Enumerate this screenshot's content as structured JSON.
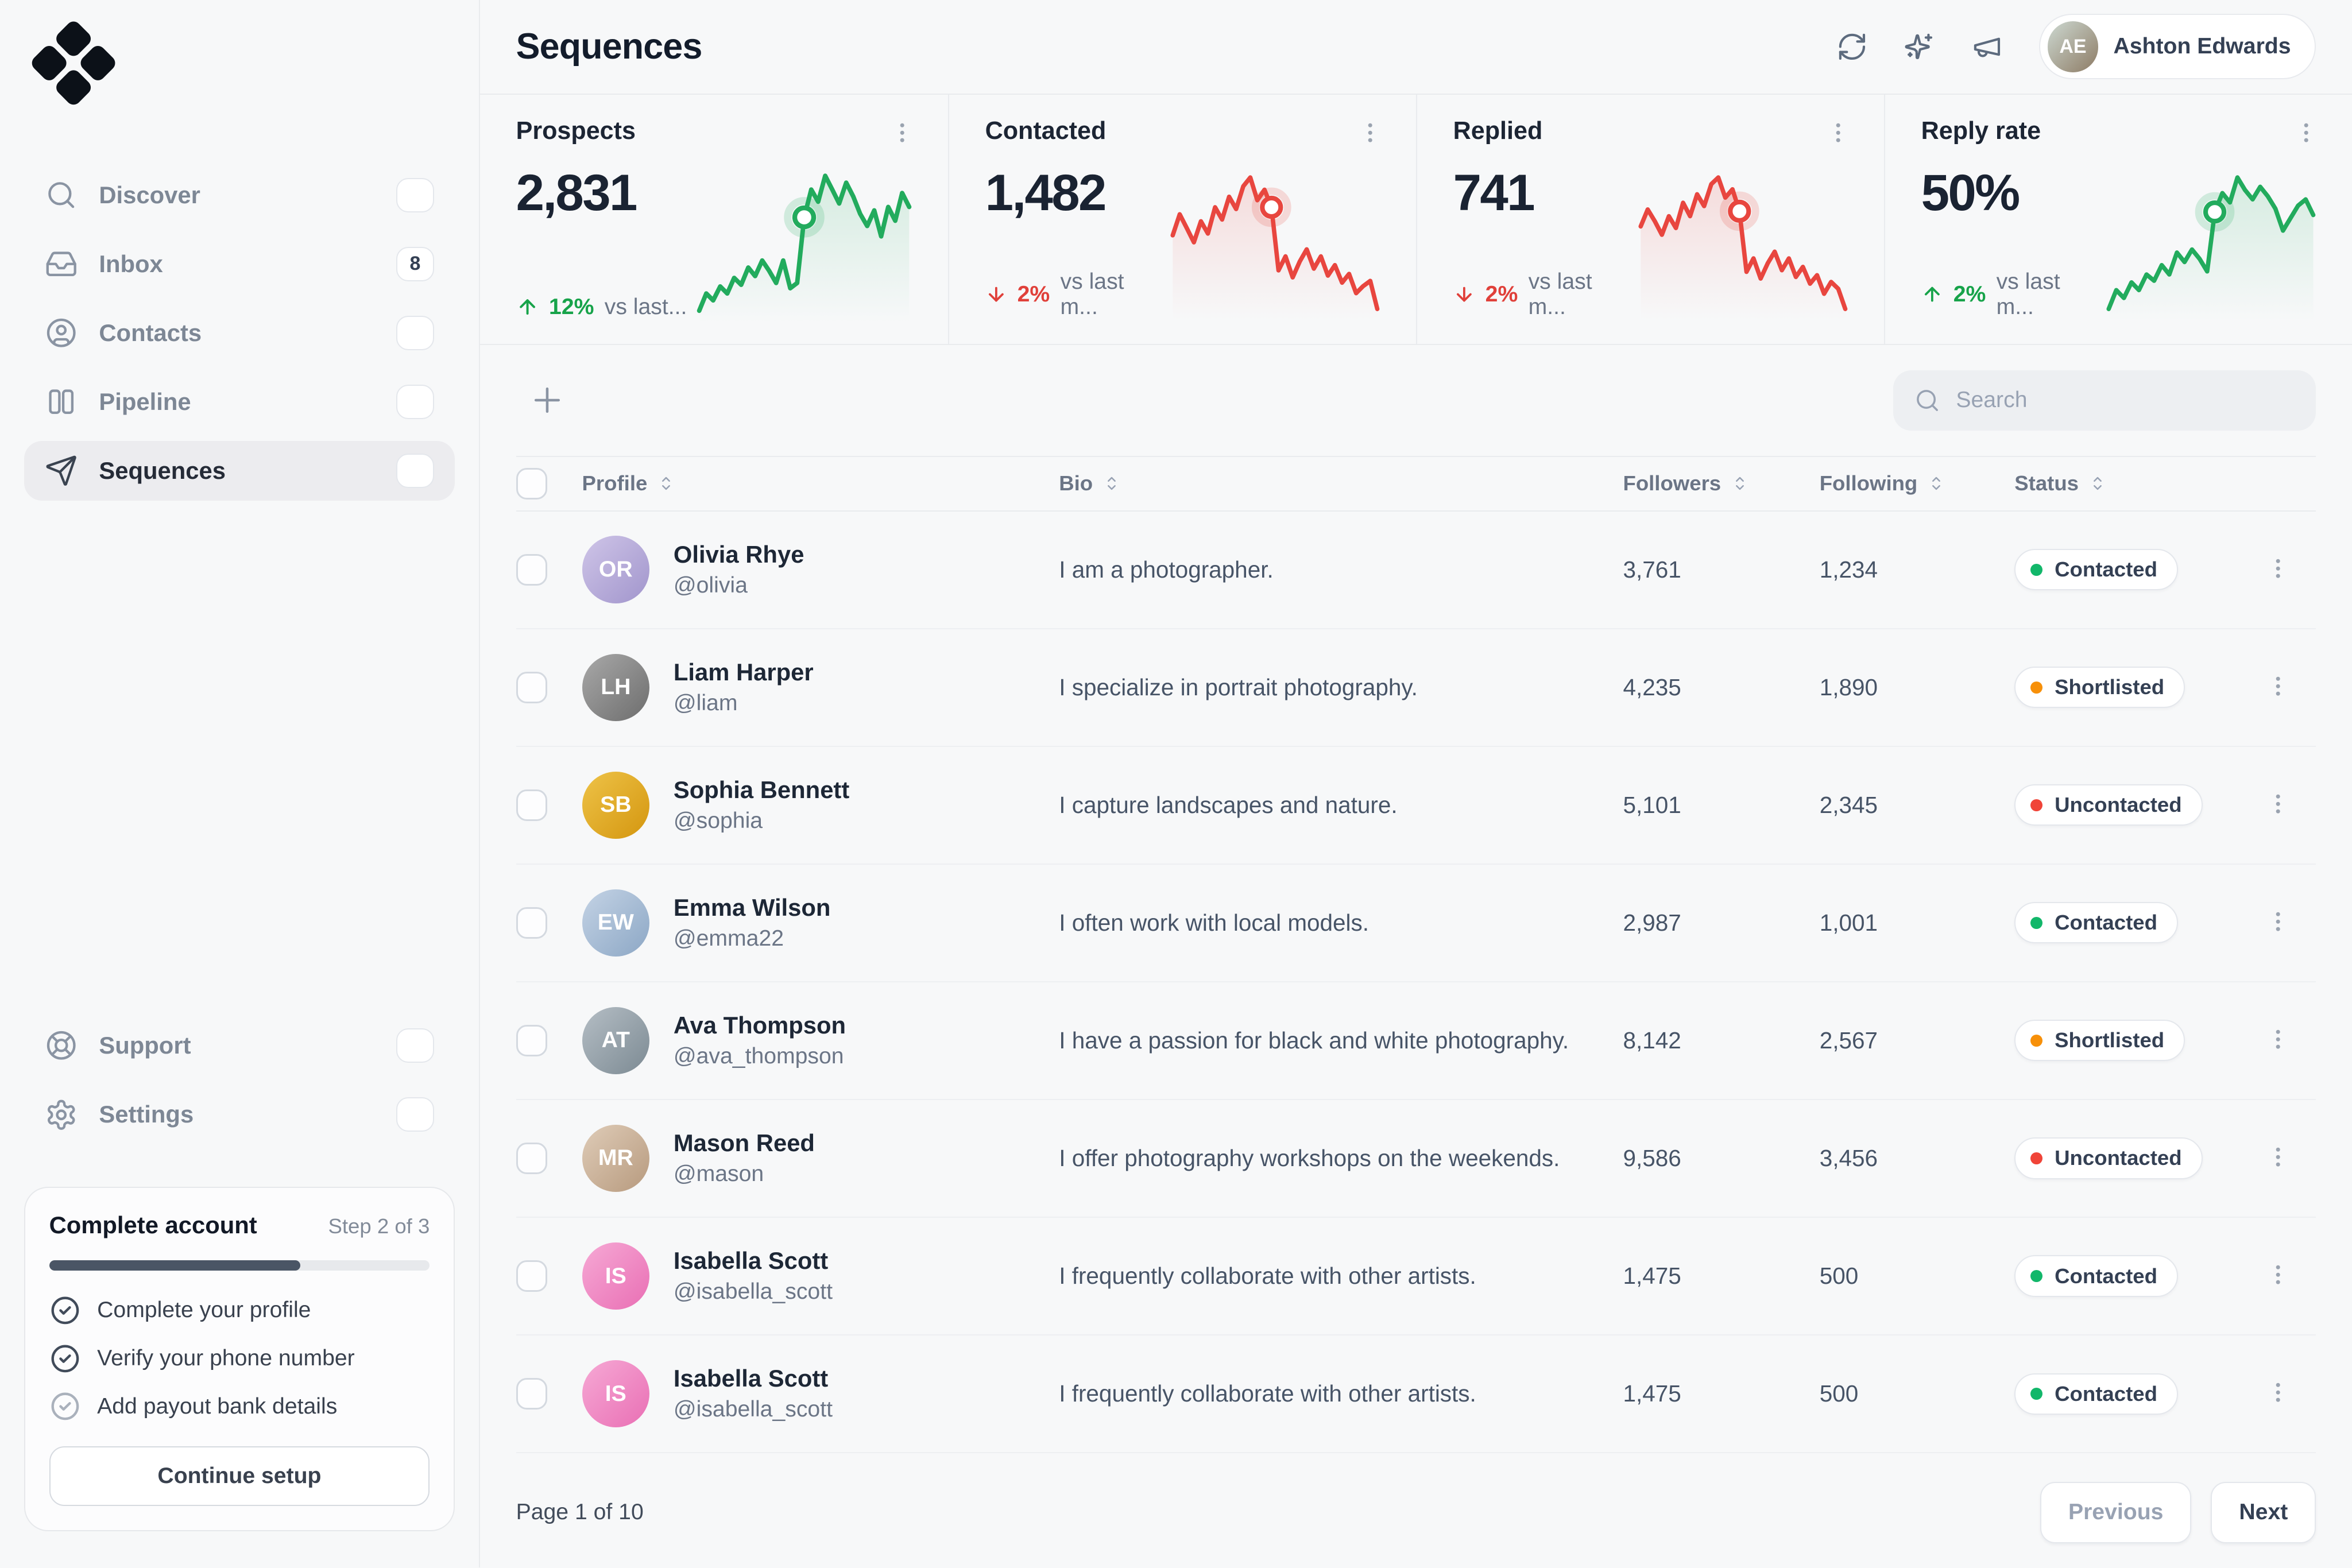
{
  "header": {
    "title": "Sequences",
    "user": {
      "name": "Ashton Edwards",
      "initials": "AE"
    }
  },
  "sidebar": {
    "nav": [
      {
        "id": "discover",
        "label": "Discover",
        "icon": "search"
      },
      {
        "id": "inbox",
        "label": "Inbox",
        "icon": "inbox",
        "badge": "8"
      },
      {
        "id": "contacts",
        "label": "Contacts",
        "icon": "user-circle"
      },
      {
        "id": "pipeline",
        "label": "Pipeline",
        "icon": "columns"
      },
      {
        "id": "sequences",
        "label": "Sequences",
        "icon": "send",
        "active": true
      }
    ],
    "footer_nav": [
      {
        "id": "support",
        "label": "Support",
        "icon": "life-buoy"
      },
      {
        "id": "settings",
        "label": "Settings",
        "icon": "settings"
      }
    ],
    "account_card": {
      "title": "Complete account",
      "step_label": "Step 2 of 3",
      "progress_pct": 66,
      "items": [
        {
          "label": "Complete your profile",
          "done": true
        },
        {
          "label": "Verify your phone number",
          "done": true
        },
        {
          "label": "Add payout bank details",
          "done": false
        }
      ],
      "button_label": "Continue setup"
    }
  },
  "stats": [
    {
      "label": "Prospects",
      "value": "2,831",
      "delta": "12%",
      "direction": "up",
      "compare": "vs last...",
      "color": "#22ab5d",
      "delta_color": "#17a34a",
      "sparkline": [
        14,
        24,
        20,
        28,
        24,
        33,
        29,
        39,
        34,
        43,
        37,
        30,
        43,
        27,
        30,
        68,
        84,
        77,
        92,
        84,
        76,
        88,
        80,
        70,
        63,
        72,
        57,
        74,
        66,
        82,
        74
      ],
      "marker_index": 15
    },
    {
      "label": "Contacted",
      "value": "1,482",
      "delta": "2%",
      "direction": "down",
      "compare": "vs last m...",
      "color": "#e8463f",
      "delta_color": "#e0403a",
      "sparkline": [
        50,
        62,
        54,
        46,
        58,
        51,
        66,
        59,
        72,
        65,
        78,
        83,
        70,
        76,
        66,
        30,
        38,
        26,
        35,
        42,
        31,
        38,
        27,
        33,
        23,
        28,
        17,
        21,
        24,
        8
      ],
      "marker_index": 14
    },
    {
      "label": "Replied",
      "value": "741",
      "delta": "2%",
      "direction": "down",
      "compare": "vs last m...",
      "color": "#e8463f",
      "delta_color": "#e0403a",
      "sparkline": [
        55,
        65,
        58,
        50,
        61,
        54,
        69,
        61,
        74,
        67,
        80,
        84,
        72,
        77,
        64,
        28,
        36,
        24,
        33,
        40,
        29,
        36,
        25,
        31,
        21,
        26,
        15,
        22,
        18,
        6
      ],
      "marker_index": 14
    },
    {
      "label": "Reply rate",
      "value": "50%",
      "delta": "2%",
      "direction": "up",
      "compare": "vs last m...",
      "color": "#22ab5d",
      "delta_color": "#17a34a",
      "sparkline": [
        6,
        18,
        13,
        23,
        18,
        28,
        24,
        34,
        28,
        42,
        36,
        44,
        38,
        30,
        68,
        80,
        74,
        90,
        82,
        76,
        84,
        78,
        70,
        56,
        64,
        72,
        76,
        66
      ],
      "marker_index": 14
    }
  ],
  "toolbar": {
    "search_placeholder": "Search"
  },
  "table": {
    "columns": [
      {
        "id": "profile",
        "label": "Profile"
      },
      {
        "id": "bio",
        "label": "Bio"
      },
      {
        "id": "followers",
        "label": "Followers"
      },
      {
        "id": "following",
        "label": "Following"
      },
      {
        "id": "status",
        "label": "Status"
      }
    ],
    "rows": [
      {
        "name": "Olivia Rhye",
        "handle": "@olivia",
        "initials": "OR",
        "avatar_colors": [
          "#cfc5e8",
          "#a195cc"
        ],
        "bio": "I am a photographer.",
        "followers": "3,761",
        "following": "1,234",
        "status": "Contacted",
        "status_color": "#12b76a"
      },
      {
        "name": "Liam Harper",
        "handle": "@liam",
        "initials": "LH",
        "avatar_colors": [
          "#a9a9a9",
          "#6d6d6d"
        ],
        "bio": "I specialize in portrait photography.",
        "followers": "4,235",
        "following": "1,890",
        "status": "Shortlisted",
        "status_color": "#f79009"
      },
      {
        "name": "Sophia Bennett",
        "handle": "@sophia",
        "initials": "SB",
        "avatar_colors": [
          "#eec348",
          "#d4960f"
        ],
        "bio": "I capture landscapes and nature.",
        "followers": "5,101",
        "following": "2,345",
        "status": "Uncontacted",
        "status_color": "#f04438"
      },
      {
        "name": "Emma Wilson",
        "handle": "@emma22",
        "initials": "EW",
        "avatar_colors": [
          "#c4d3e5",
          "#8ca7c5"
        ],
        "bio": "I often work with local models.",
        "followers": "2,987",
        "following": "1,001",
        "status": "Contacted",
        "status_color": "#12b76a"
      },
      {
        "name": "Ava Thompson",
        "handle": "@ava_thompson",
        "initials": "AT",
        "avatar_colors": [
          "#b5bec5",
          "#7c8a93"
        ],
        "bio": "I have a passion for black and white photography.",
        "followers": "8,142",
        "following": "2,567",
        "status": "Shortlisted",
        "status_color": "#f79009"
      },
      {
        "name": "Mason Reed",
        "handle": "@mason",
        "initials": "MR",
        "avatar_colors": [
          "#dfccb8",
          "#b79a7e"
        ],
        "bio": "I offer photography workshops on the weekends.",
        "followers": "9,586",
        "following": "3,456",
        "status": "Uncontacted",
        "status_color": "#f04438"
      },
      {
        "name": "Isabella Scott",
        "handle": "@isabella_scott",
        "initials": "IS",
        "avatar_colors": [
          "#f6a9d5",
          "#e96fb4"
        ],
        "bio": "I frequently collaborate with other artists.",
        "followers": "1,475",
        "following": "500",
        "status": "Contacted",
        "status_color": "#12b76a"
      },
      {
        "name": "Isabella Scott",
        "handle": "@isabella_scott",
        "initials": "IS",
        "avatar_colors": [
          "#f6a9d5",
          "#e96fb4"
        ],
        "bio": "I frequently collaborate with other artists.",
        "followers": "1,475",
        "following": "500",
        "status": "Contacted",
        "status_color": "#12b76a"
      }
    ]
  },
  "footer": {
    "page_label": "Page 1 of 10",
    "prev_label": "Previous",
    "next_label": "Next"
  }
}
